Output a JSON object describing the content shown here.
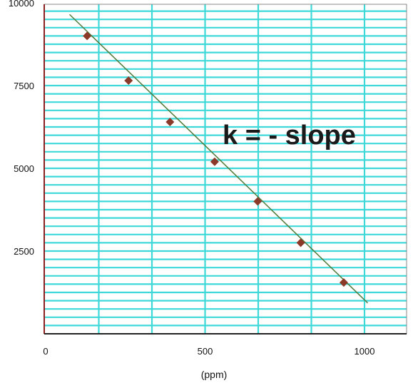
{
  "chart_data": {
    "type": "scatter",
    "title": "",
    "xlabel": "(ppm)",
    "ylabel": "",
    "xlim": [
      0,
      1100
    ],
    "ylim": [
      0,
      10000
    ],
    "xticks": [
      0,
      500,
      1000
    ],
    "xtick_labels": [
      "0",
      "500",
      "1000"
    ],
    "yticks": [
      2500,
      5000,
      7500,
      10000
    ],
    "ytick_labels": [
      "2500",
      "5000",
      "7500",
      "10000"
    ],
    "grid": true,
    "annotation": "k = - slope",
    "series": [
      {
        "x": [
          130,
          260,
          390,
          530,
          665,
          800,
          935
        ],
        "y": [
          9000,
          7650,
          6400,
          5200,
          4000,
          2750,
          1550
        ],
        "marker_color": "#8b3a2a"
      }
    ],
    "fit_line": {
      "x": [
        75,
        1010
      ],
      "y": [
        9650,
        930
      ],
      "color": "#4f7a3a"
    },
    "colors": {
      "grid": "#3fd8d8",
      "axis": "#222222"
    }
  }
}
